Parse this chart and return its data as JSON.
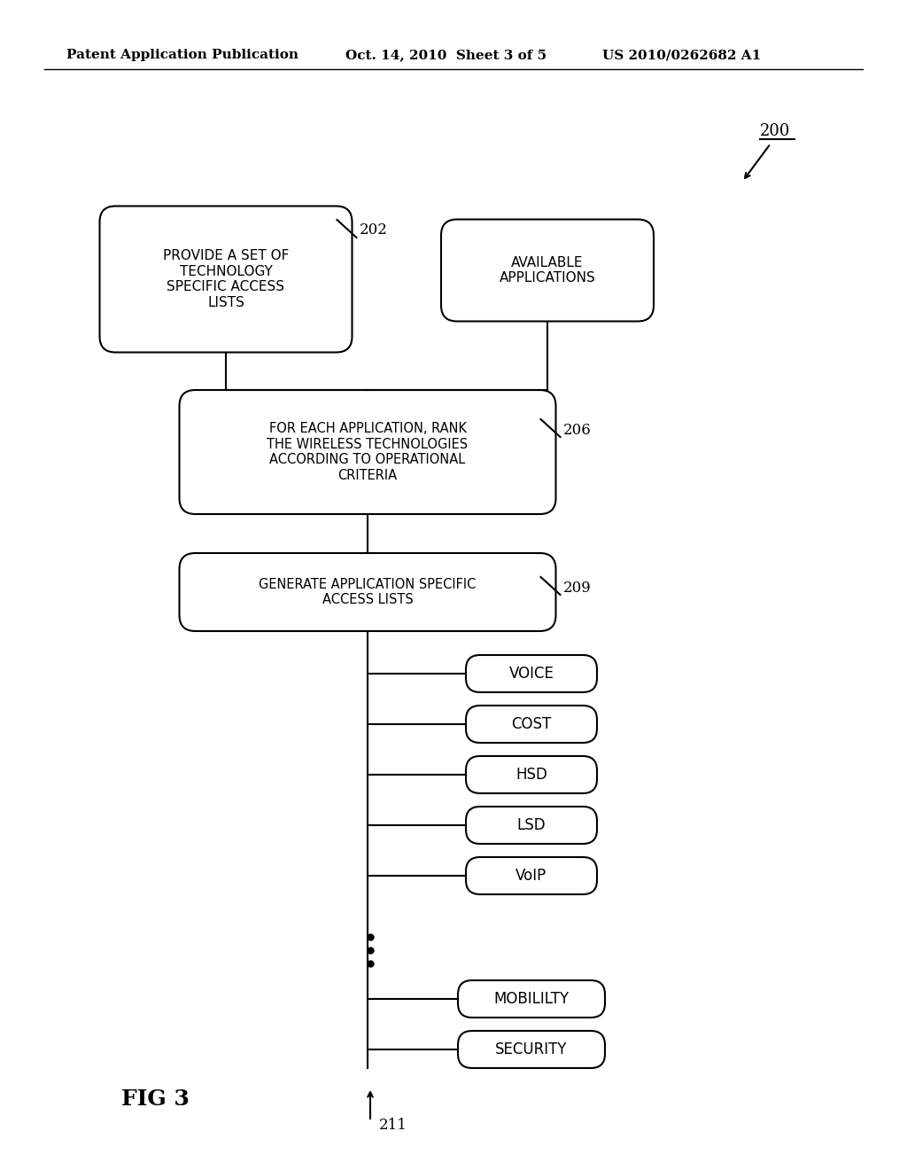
{
  "bg_color": "#ffffff",
  "header_left": "Patent Application Publication",
  "header_mid": "Oct. 14, 2010  Sheet 3 of 5",
  "header_right": "US 2010/0262682 A1",
  "fig_label": "FIG 3",
  "ref_200": "200",
  "ref_202": "202",
  "ref_206": "206",
  "ref_209": "209",
  "ref_211": "211",
  "box1_text": "PROVIDE A SET OF\nTECHNOLOGY\nSPECIFIC ACCESS\nLISTS",
  "box2_text": "AVAILABLE\nAPPLICATIONS",
  "box3_text": "FOR EACH APPLICATION, RANK\nTHE WIRELESS TECHNOLOGIES\nACCORDING TO OPERATIONAL\nCRITERIA",
  "box4_text": "GENERATE APPLICATION SPECIFIC\nACCESS LISTS",
  "pill_labels": [
    "VOICE",
    "COST",
    "HSD",
    "LSD",
    "VoIP",
    "MOBILILTY",
    "SECURITY"
  ]
}
